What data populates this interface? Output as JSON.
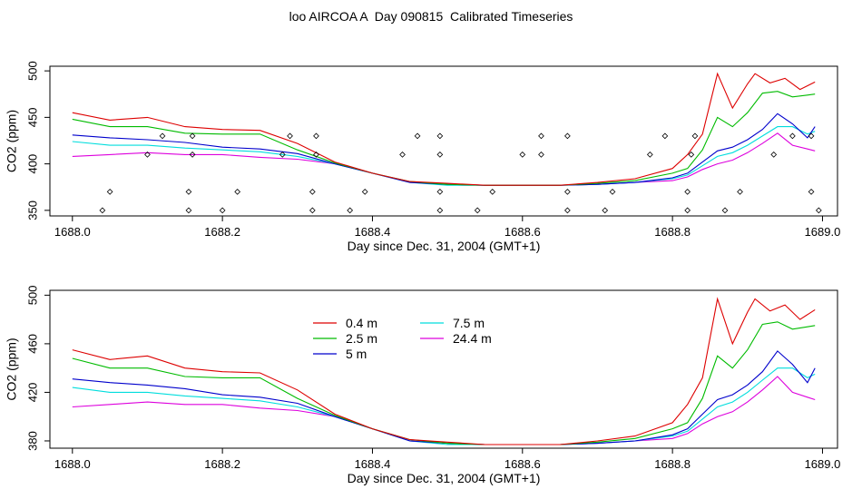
{
  "title": "loo AIRCOA A  Day 090815  Calibrated Timeseries",
  "chart_data": [
    {
      "type": "line",
      "xlabel": "Day since Dec. 31, 2004 (GMT+1)",
      "ylabel": "CO2 (ppm)",
      "xlim": [
        1687.97,
        1689.02
      ],
      "ylim": [
        344,
        505
      ],
      "xticks": [
        "1688.0",
        "1688.2",
        "1688.4",
        "1688.6",
        "1688.8",
        "1689.0"
      ],
      "yticks": [
        "350",
        "400",
        "450",
        "500"
      ],
      "legend": "none",
      "series": [
        {
          "name": "0.4 m",
          "color": "#dd0000",
          "x": [
            1688.0,
            1688.05,
            1688.1,
            1688.15,
            1688.2,
            1688.25,
            1688.3,
            1688.35,
            1688.4,
            1688.45,
            1688.5,
            1688.55,
            1688.6,
            1688.65,
            1688.7,
            1688.75,
            1688.8,
            1688.82,
            1688.84,
            1688.86,
            1688.88,
            1688.9,
            1688.91,
            1688.93,
            1688.95,
            1688.97,
            1688.99
          ],
          "y": [
            455,
            447,
            450,
            440,
            437,
            436,
            422,
            402,
            390,
            381,
            379,
            377,
            377,
            377,
            380,
            384,
            395,
            410,
            432,
            497,
            460,
            486,
            497,
            487,
            492,
            480,
            488
          ]
        },
        {
          "name": "2.5 m",
          "color": "#00bb00",
          "x": [
            1688.0,
            1688.05,
            1688.1,
            1688.15,
            1688.2,
            1688.25,
            1688.3,
            1688.35,
            1688.4,
            1688.45,
            1688.5,
            1688.55,
            1688.6,
            1688.65,
            1688.7,
            1688.75,
            1688.8,
            1688.82,
            1688.84,
            1688.86,
            1688.88,
            1688.9,
            1688.92,
            1688.94,
            1688.96,
            1688.98,
            1688.99
          ],
          "y": [
            448,
            440,
            440,
            433,
            432,
            432,
            415,
            401,
            390,
            381,
            378,
            377,
            377,
            377,
            379,
            382,
            390,
            395,
            415,
            450,
            440,
            455,
            476,
            478,
            472,
            474,
            475
          ]
        },
        {
          "name": "5 m",
          "color": "#0000cc",
          "x": [
            1688.0,
            1688.05,
            1688.1,
            1688.15,
            1688.2,
            1688.25,
            1688.3,
            1688.35,
            1688.4,
            1688.45,
            1688.5,
            1688.55,
            1688.6,
            1688.65,
            1688.7,
            1688.75,
            1688.8,
            1688.82,
            1688.84,
            1688.86,
            1688.88,
            1688.9,
            1688.92,
            1688.94,
            1688.96,
            1688.98,
            1688.99
          ],
          "y": [
            431,
            428,
            426,
            423,
            418,
            416,
            411,
            400,
            390,
            380,
            378,
            377,
            377,
            377,
            378,
            380,
            385,
            390,
            402,
            414,
            418,
            426,
            437,
            454,
            443,
            428,
            440
          ]
        },
        {
          "name": "7.5 m",
          "color": "#00dddd",
          "x": [
            1688.0,
            1688.05,
            1688.1,
            1688.15,
            1688.2,
            1688.25,
            1688.3,
            1688.35,
            1688.4,
            1688.45,
            1688.5,
            1688.55,
            1688.6,
            1688.65,
            1688.7,
            1688.75,
            1688.8,
            1688.82,
            1688.84,
            1688.86,
            1688.88,
            1688.9,
            1688.92,
            1688.94,
            1688.96,
            1688.98,
            1688.99
          ],
          "y": [
            424,
            420,
            420,
            417,
            415,
            413,
            408,
            400,
            390,
            380,
            377,
            377,
            377,
            377,
            378,
            380,
            384,
            388,
            398,
            408,
            412,
            420,
            430,
            440,
            440,
            432,
            435
          ]
        },
        {
          "name": "24.4 m",
          "color": "#dd00dd",
          "x": [
            1688.0,
            1688.05,
            1688.1,
            1688.15,
            1688.2,
            1688.25,
            1688.3,
            1688.35,
            1688.4,
            1688.45,
            1688.5,
            1688.55,
            1688.6,
            1688.65,
            1688.7,
            1688.75,
            1688.8,
            1688.82,
            1688.84,
            1688.86,
            1688.88,
            1688.9,
            1688.92,
            1688.94,
            1688.96,
            1688.98,
            1688.99
          ],
          "y": [
            408,
            410,
            412,
            410,
            410,
            407,
            405,
            400,
            390,
            380,
            378,
            377,
            377,
            377,
            378,
            380,
            382,
            386,
            394,
            400,
            404,
            412,
            422,
            433,
            420,
            416,
            414
          ]
        }
      ],
      "markers": {
        "shape": "diamond",
        "x": [
          1688.04,
          1688.05,
          1688.1,
          1688.12,
          1688.155,
          1688.155,
          1688.16,
          1688.16,
          1688.2,
          1688.22,
          1688.28,
          1688.29,
          1688.32,
          1688.32,
          1688.325,
          1688.325,
          1688.37,
          1688.39,
          1688.44,
          1688.46,
          1688.49,
          1688.49,
          1688.49,
          1688.49,
          1688.54,
          1688.56,
          1688.6,
          1688.625,
          1688.625,
          1688.66,
          1688.66,
          1688.66,
          1688.71,
          1688.72,
          1688.77,
          1688.79,
          1688.82,
          1688.82,
          1688.825,
          1688.83,
          1688.87,
          1688.89,
          1688.935,
          1688.96,
          1688.985,
          1688.985,
          1688.995
        ],
        "y": [
          350,
          370,
          410,
          430,
          350,
          370,
          410,
          430,
          350,
          370,
          410,
          430,
          350,
          370,
          410,
          430,
          350,
          370,
          410,
          430,
          350,
          370,
          410,
          430,
          350,
          370,
          410,
          430,
          410,
          350,
          370,
          430,
          350,
          370,
          410,
          430,
          350,
          370,
          410,
          430,
          350,
          370,
          410,
          430,
          430,
          370,
          350
        ]
      }
    },
    {
      "type": "line",
      "xlabel": "Day since Dec. 31, 2004 (GMT+1)",
      "ylabel": "CO2 (ppm)",
      "xlim": [
        1687.97,
        1689.02
      ],
      "ylim": [
        374,
        504
      ],
      "xticks": [
        "1688.0",
        "1688.2",
        "1688.4",
        "1688.6",
        "1688.8",
        "1689.0"
      ],
      "yticks": [
        "380",
        "420",
        "460",
        "500"
      ],
      "legend": "top-left",
      "series": [
        {
          "name": "0.4 m",
          "color": "#dd0000",
          "x": [
            1688.0,
            1688.05,
            1688.1,
            1688.15,
            1688.2,
            1688.25,
            1688.3,
            1688.35,
            1688.4,
            1688.45,
            1688.5,
            1688.55,
            1688.6,
            1688.65,
            1688.7,
            1688.75,
            1688.8,
            1688.82,
            1688.84,
            1688.86,
            1688.88,
            1688.9,
            1688.91,
            1688.93,
            1688.95,
            1688.97,
            1688.99
          ],
          "y": [
            455,
            447,
            450,
            440,
            437,
            436,
            422,
            402,
            390,
            381,
            379,
            377,
            377,
            377,
            380,
            384,
            395,
            410,
            432,
            497,
            460,
            486,
            497,
            487,
            492,
            480,
            488
          ]
        },
        {
          "name": "2.5 m",
          "color": "#00bb00",
          "x": [
            1688.0,
            1688.05,
            1688.1,
            1688.15,
            1688.2,
            1688.25,
            1688.3,
            1688.35,
            1688.4,
            1688.45,
            1688.5,
            1688.55,
            1688.6,
            1688.65,
            1688.7,
            1688.75,
            1688.8,
            1688.82,
            1688.84,
            1688.86,
            1688.88,
            1688.9,
            1688.92,
            1688.94,
            1688.96,
            1688.98,
            1688.99
          ],
          "y": [
            448,
            440,
            440,
            433,
            432,
            432,
            415,
            401,
            390,
            381,
            378,
            377,
            377,
            377,
            379,
            382,
            390,
            395,
            415,
            450,
            440,
            455,
            476,
            478,
            472,
            474,
            475
          ]
        },
        {
          "name": "5 m",
          "color": "#0000cc",
          "x": [
            1688.0,
            1688.05,
            1688.1,
            1688.15,
            1688.2,
            1688.25,
            1688.3,
            1688.35,
            1688.4,
            1688.45,
            1688.5,
            1688.55,
            1688.6,
            1688.65,
            1688.7,
            1688.75,
            1688.8,
            1688.82,
            1688.84,
            1688.86,
            1688.88,
            1688.9,
            1688.92,
            1688.94,
            1688.96,
            1688.98,
            1688.99
          ],
          "y": [
            431,
            428,
            426,
            423,
            418,
            416,
            411,
            400,
            390,
            380,
            378,
            377,
            377,
            377,
            378,
            380,
            385,
            390,
            402,
            414,
            418,
            426,
            437,
            454,
            443,
            428,
            440
          ]
        },
        {
          "name": "7.5 m",
          "color": "#00dddd",
          "x": [
            1688.0,
            1688.05,
            1688.1,
            1688.15,
            1688.2,
            1688.25,
            1688.3,
            1688.35,
            1688.4,
            1688.45,
            1688.5,
            1688.55,
            1688.6,
            1688.65,
            1688.7,
            1688.75,
            1688.8,
            1688.82,
            1688.84,
            1688.86,
            1688.88,
            1688.9,
            1688.92,
            1688.94,
            1688.96,
            1688.98,
            1688.99
          ],
          "y": [
            424,
            420,
            420,
            417,
            415,
            413,
            408,
            400,
            390,
            380,
            377,
            377,
            377,
            377,
            378,
            380,
            384,
            388,
            398,
            408,
            412,
            420,
            430,
            440,
            440,
            432,
            435
          ]
        },
        {
          "name": "24.4 m",
          "color": "#dd00dd",
          "x": [
            1688.0,
            1688.05,
            1688.1,
            1688.15,
            1688.2,
            1688.25,
            1688.3,
            1688.35,
            1688.4,
            1688.45,
            1688.5,
            1688.55,
            1688.6,
            1688.65,
            1688.7,
            1688.75,
            1688.8,
            1688.82,
            1688.84,
            1688.86,
            1688.88,
            1688.9,
            1688.92,
            1688.94,
            1688.96,
            1688.98,
            1688.99
          ],
          "y": [
            408,
            410,
            412,
            410,
            410,
            407,
            405,
            400,
            390,
            380,
            378,
            377,
            377,
            377,
            378,
            380,
            382,
            386,
            394,
            400,
            404,
            412,
            422,
            433,
            420,
            416,
            414
          ]
        }
      ]
    }
  ]
}
